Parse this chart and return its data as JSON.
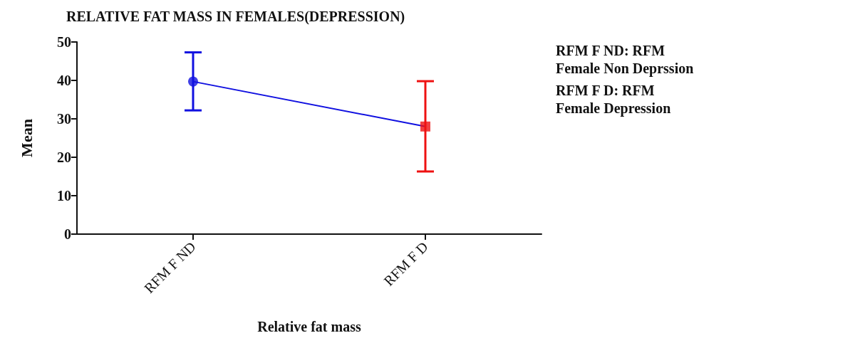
{
  "chart_data": {
    "type": "line",
    "title": "RELATIVE FAT MASS IN FEMALES(DEPRESSION)",
    "xlabel": "Relative fat mass",
    "ylabel": "Mean",
    "categories": [
      "RFM F ND",
      "RFM F D"
    ],
    "values": [
      39.7,
      28.0
    ],
    "color": "#1010e0",
    "colors": [
      "#1010e0",
      "#ee1111"
    ],
    "marker": [
      "circle",
      "square"
    ],
    "errors": [
      [
        32.2,
        47.3
      ],
      [
        16.3,
        39.8
      ]
    ],
    "ylim": [
      0,
      50
    ],
    "yticks": [
      0,
      10,
      20,
      30,
      40,
      50
    ],
    "grid": false,
    "annotations": [
      "RFM F ND: RFM Female Non Deprssion",
      "RFM F D: RFM Female Depression"
    ]
  }
}
